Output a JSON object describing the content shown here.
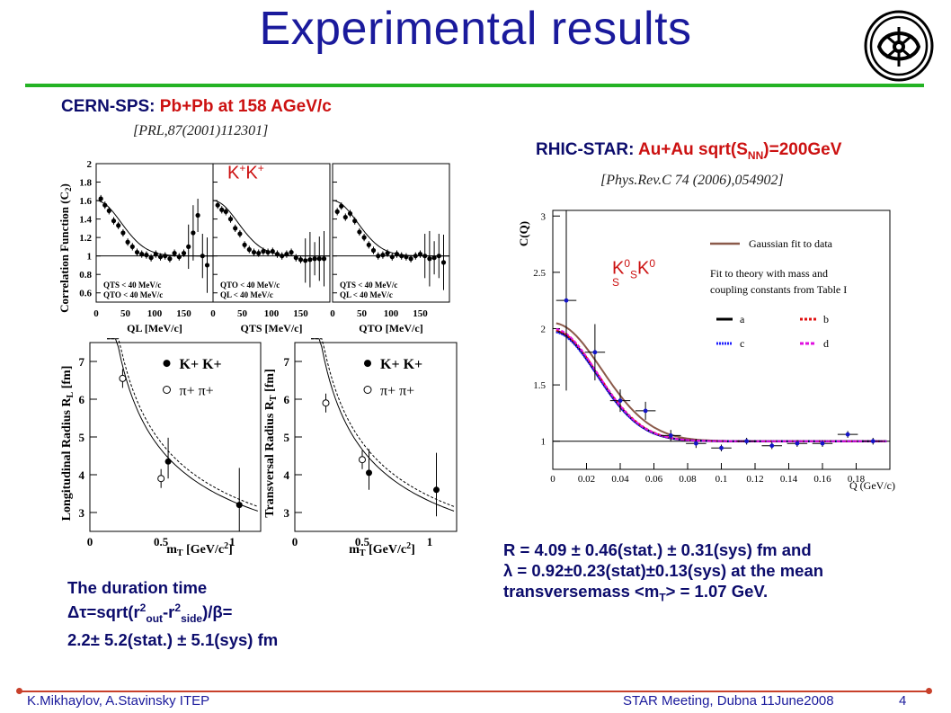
{
  "title": "Experimental results",
  "left": {
    "header_label": "CERN-SPS: ",
    "header_value": "Pb+Pb at 158 AGeV/c",
    "reference": "[PRL,87(2001)112301]",
    "kk_label": "K+K+",
    "top_plots": {
      "ylabel": "Correlation Function (C2)",
      "ylabel_sub": "2",
      "panels": [
        {
          "xlabel": "QL [MeV/c]",
          "note1": "QTS < 40 MeV/c",
          "note2": "QTO < 40 MeV/c"
        },
        {
          "xlabel": "QTS [MeV/c]",
          "note1": "QTO < 40 MeV/c",
          "note2": "QL < 40 MeV/c"
        },
        {
          "xlabel": "QTO [MeV/c]",
          "note1": "QTS < 40 MeV/c",
          "note2": "QL < 40 MeV/c"
        }
      ],
      "yticks": [
        "2",
        "1.8",
        "1.6",
        "1.4",
        "1.2",
        "1",
        "0.8",
        "0.6"
      ],
      "xticks": [
        "0",
        "50",
        "100",
        "150"
      ]
    },
    "bottom_plots": [
      {
        "ylabel": "Longitudinal Radius RL [fm]",
        "xlabel": "mT [GeV/c2]",
        "yticks": [
          "3",
          "4",
          "5",
          "6",
          "7"
        ],
        "xticks": [
          "0",
          "0.5",
          "1"
        ],
        "legend": [
          "K+ K+",
          "π+ π+"
        ]
      },
      {
        "ylabel": "Transversal Radius RT [fm]",
        "xlabel": "mT [GeV/c2]",
        "yticks": [
          "3",
          "4",
          "5",
          "6",
          "7"
        ],
        "xticks": [
          "0",
          "0.5",
          "1"
        ],
        "legend": [
          "K+ K+",
          "π+ π+"
        ]
      }
    ],
    "duration_line1": "The duration time",
    "duration_line2": "Δτ=sqrt(r2out-r2side)/β=",
    "duration_line3": "2.2± 5.2(stat.) ± 5.1(sys) fm"
  },
  "right": {
    "header_label": "RHIC-STAR: ",
    "header_value": "Au+Au sqrt(SNN)=200GeV",
    "reference": "[Phys.Rev.C 74 (2006),054902]",
    "k0_label": "K0SK0S",
    "plot": {
      "ylabel": "C(Q)",
      "xlabel": "Q (GeV/c)",
      "yticks": [
        "1",
        "1.5",
        "2",
        "2.5",
        "3"
      ],
      "xticks": [
        "0",
        "0.02",
        "0.04",
        "0.06",
        "0.08",
        "0.1",
        "0.12",
        "0.14",
        "0.16",
        "0.18"
      ],
      "legend_gauss": "Gaussian fit to data",
      "legend_theory1": "Fit to theory with mass and",
      "legend_theory2": "coupling constants from Table I",
      "legend_a": "a",
      "legend_b": "b",
      "legend_c": "c",
      "legend_d": "d"
    },
    "result_line1": "R = 4.09 ± 0.46(stat.) ± 0.31(sys)  fm and",
    "result_line2": "λ = 0.92±0.23(stat)±0.13(sys)  at the mean",
    "result_line3": "transversemass <mT> = 1.07 GeV."
  },
  "footer": {
    "left": "K.Mikhaylov, A.Stavinsky ITEP",
    "center": "STAR Meeting, Dubna 11June2008",
    "page": "4"
  },
  "chart_data": [
    {
      "type": "scatter",
      "ylim": [
        0.5,
        2.0
      ],
      "xlim": [
        0,
        200
      ],
      "series": [
        {
          "x": [
            8,
            15,
            22,
            30,
            38,
            46,
            54,
            62,
            70,
            78,
            86,
            94,
            102,
            110,
            118,
            126,
            134,
            142,
            150,
            158,
            166,
            174,
            182,
            190
          ],
          "y": [
            1.62,
            1.55,
            1.49,
            1.38,
            1.33,
            1.25,
            1.15,
            1.1,
            1.04,
            1.02,
            1.01,
            0.98,
            1.02,
            0.99,
            1.0,
            0.97,
            1.03,
            0.99,
            1.03,
            1.1,
            1.25,
            1.44,
            1.0,
            0.9
          ]
        },
        {
          "x": [
            8,
            15,
            22,
            30,
            38,
            46,
            54,
            62,
            70,
            78,
            86,
            94,
            102,
            110,
            118,
            126,
            134,
            142,
            150,
            158,
            166,
            174,
            182,
            190
          ],
          "y": [
            1.55,
            1.5,
            1.48,
            1.4,
            1.3,
            1.24,
            1.12,
            1.07,
            1.04,
            1.03,
            1.05,
            1.04,
            1.05,
            1.02,
            1.0,
            1.02,
            1.04,
            0.98,
            0.96,
            0.95,
            0.96,
            0.97,
            0.97,
            0.97
          ]
        },
        {
          "x": [
            8,
            15,
            22,
            30,
            38,
            46,
            54,
            62,
            70,
            78,
            86,
            94,
            102,
            110,
            118,
            126,
            134,
            142,
            150,
            158,
            166,
            174,
            182,
            190
          ],
          "y": [
            1.48,
            1.54,
            1.42,
            1.46,
            1.38,
            1.26,
            1.2,
            1.12,
            1.06,
            1.0,
            1.01,
            1.03,
            0.99,
            1.02,
            1.0,
            0.99,
            0.97,
            1.0,
            1.02,
            1.0,
            0.97,
            0.98,
            1.0,
            0.93
          ]
        }
      ]
    },
    {
      "type": "scatter",
      "xlim": [
        0,
        1.2
      ],
      "ylim": [
        2.5,
        7.5
      ],
      "series": [
        {
          "x": [
            0.55,
            1.05
          ],
          "y": [
            4.35,
            3.2
          ]
        },
        {
          "x": [
            0.23,
            0.5
          ],
          "y": [
            6.55,
            3.9
          ]
        }
      ]
    },
    {
      "type": "scatter",
      "xlim": [
        0,
        1.2
      ],
      "ylim": [
        2.5,
        7.5
      ],
      "series": [
        {
          "x": [
            0.55,
            1.05
          ],
          "y": [
            4.05,
            3.6
          ]
        },
        {
          "x": [
            0.23,
            0.5
          ],
          "y": [
            5.9,
            4.4
          ]
        }
      ]
    },
    {
      "type": "scatter",
      "xlim": [
        0,
        0.2
      ],
      "ylim": [
        0.75,
        3.05
      ],
      "series": [
        {
          "x": [
            0.008,
            0.025,
            0.04,
            0.055,
            0.07,
            0.085,
            0.1,
            0.115,
            0.13,
            0.145,
            0.16,
            0.175,
            0.19
          ],
          "y": [
            2.25,
            1.79,
            1.36,
            1.27,
            1.05,
            0.98,
            0.94,
            1.0,
            0.96,
            0.98,
            0.98,
            1.06,
            1.0
          ]
        }
      ]
    }
  ]
}
